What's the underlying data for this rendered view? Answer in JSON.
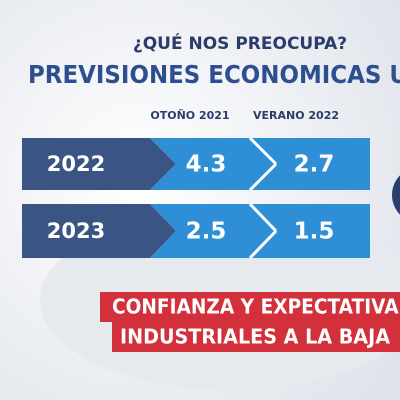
{
  "header": {
    "kicker": "¿QUÉ NOS PREOCUPA?",
    "title": "PREVISIONES ECONOMICAS U"
  },
  "table": {
    "columns": [
      "OTOÑO 2021",
      "VERANO 2022"
    ],
    "rows": [
      [
        "2022",
        "4.3",
        "2.7"
      ],
      [
        "2023",
        "2.5",
        "1.5"
      ]
    ]
  },
  "banner": {
    "lines": [
      "CONFIANZA Y EXPECTATIVAS",
      "INDUSTRIALES A LA BAJA"
    ]
  }
}
